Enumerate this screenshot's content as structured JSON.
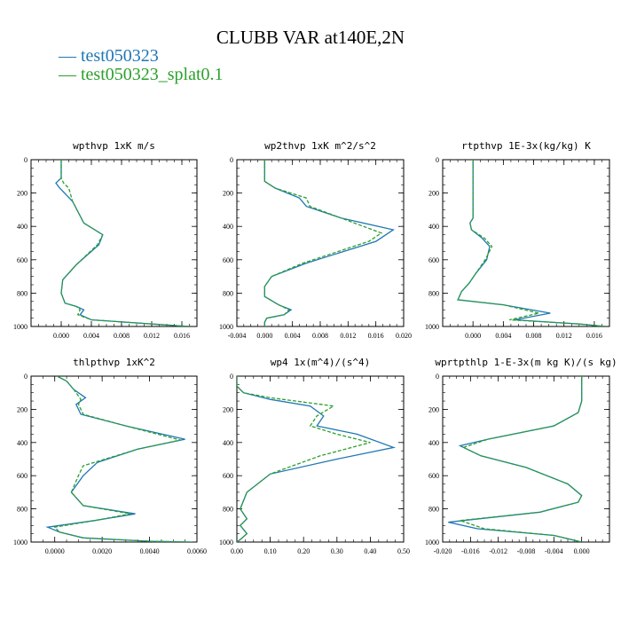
{
  "title": "CLUBB VAR at140E,2N",
  "colors": {
    "series1": "#1f77b4",
    "series2": "#2ca02c"
  },
  "legend": [
    {
      "label": "test050323",
      "color": "#1f77b4"
    },
    {
      "label": "test050323_splat0.1",
      "color": "#2ca02c"
    }
  ],
  "chart_data": [
    {
      "type": "line",
      "title": "wpthvp   1xK m/s",
      "xlim": [
        -0.004,
        0.018
      ],
      "ylim": [
        1000,
        0
      ],
      "x_ticks": [
        "0.000",
        "0.004",
        "0.008",
        "0.012",
        "0.016"
      ],
      "x_tick_values": [
        0.0,
        0.004,
        0.008,
        0.012,
        0.016
      ],
      "y_ticks": [
        "0",
        "200",
        "400",
        "600",
        "800",
        "1000"
      ],
      "y_tick_values": [
        0,
        200,
        400,
        600,
        800,
        1000
      ],
      "series": [
        {
          "name": "test050323",
          "x": [
            0.0,
            0.0,
            -0.0007,
            -0.0002,
            0.0015,
            0.003,
            0.0055,
            0.005,
            0.002,
            0.0002,
            0.0,
            0.0005,
            0.002,
            0.003,
            0.0025,
            0.004,
            0.012,
            0.017
          ],
          "y": [
            0,
            110,
            140,
            170,
            250,
            380,
            450,
            510,
            630,
            720,
            800,
            860,
            880,
            900,
            930,
            960,
            985,
            1000
          ]
        },
        {
          "name": "test050323_splat0.1",
          "x": [
            0.0,
            0.0,
            0.0003,
            0.001,
            0.0015,
            0.003,
            0.0055,
            0.0048,
            0.002,
            0.0002,
            0.0,
            0.0005,
            0.002,
            0.0025,
            0.0022,
            0.004,
            0.012,
            0.017
          ],
          "y": [
            0,
            110,
            140,
            170,
            250,
            380,
            450,
            510,
            630,
            720,
            800,
            860,
            880,
            900,
            930,
            960,
            985,
            1000
          ]
        }
      ]
    },
    {
      "type": "line",
      "title": "wp2thvp   1xK m^2/s^2",
      "xlim": [
        -0.004,
        0.02
      ],
      "ylim": [
        1000,
        0
      ],
      "x_ticks": [
        "-0.004",
        "0.000",
        "0.004",
        "0.008",
        "0.012",
        "0.016",
        "0.020"
      ],
      "x_tick_values": [
        -0.004,
        0.0,
        0.004,
        0.008,
        0.012,
        0.016,
        0.02
      ],
      "y_ticks": [
        "0",
        "200",
        "400",
        "600",
        "800",
        "1000"
      ],
      "y_tick_values": [
        0,
        200,
        400,
        600,
        800,
        1000
      ],
      "series": [
        {
          "name": "test050323",
          "x": [
            0.0,
            0.0,
            0.0015,
            0.005,
            0.006,
            0.011,
            0.0185,
            0.016,
            0.006,
            0.001,
            0.0,
            0.0,
            0.002,
            0.0038,
            0.0028,
            0.0003,
            0.0,
            0.0
          ],
          "y": [
            0,
            130,
            170,
            230,
            280,
            350,
            420,
            490,
            620,
            700,
            760,
            820,
            870,
            900,
            930,
            950,
            975,
            1000
          ]
        },
        {
          "name": "test050323_splat0.1",
          "x": [
            0.0,
            0.0,
            0.0015,
            0.006,
            0.0065,
            0.011,
            0.0168,
            0.015,
            0.0055,
            0.001,
            0.0,
            0.0,
            0.002,
            0.0035,
            0.0028,
            0.0003,
            0.0,
            0.0
          ],
          "y": [
            0,
            130,
            170,
            230,
            280,
            350,
            440,
            490,
            620,
            700,
            760,
            820,
            870,
            900,
            930,
            950,
            975,
            1000
          ]
        }
      ]
    },
    {
      "type": "line",
      "title": "rtpthvp   1E-3x(kg/kg) K",
      "xlim": [
        -0.004,
        0.018
      ],
      "ylim": [
        1000,
        0
      ],
      "x_ticks": [
        "0.000",
        "0.004",
        "0.008",
        "0.012",
        "0.016"
      ],
      "x_tick_values": [
        0.0,
        0.004,
        0.008,
        0.012,
        0.016
      ],
      "y_ticks": [
        "0",
        "200",
        "400",
        "600",
        "800",
        "1000"
      ],
      "y_tick_values": [
        0,
        200,
        400,
        600,
        800,
        1000
      ],
      "series": [
        {
          "name": "test050323",
          "x": [
            0.0,
            0.0,
            0.0,
            0.0,
            -0.0004,
            -0.0002,
            0.0012,
            0.0022,
            0.0018,
            0.0004,
            -0.0005,
            -0.0015,
            -0.002,
            0.004,
            0.0102,
            0.0055,
            0.014,
            0.0175
          ],
          "y": [
            0,
            200,
            300,
            350,
            380,
            420,
            470,
            520,
            600,
            680,
            740,
            790,
            840,
            870,
            920,
            960,
            985,
            1000
          ]
        },
        {
          "name": "test050323_splat0.1",
          "x": [
            0.0,
            0.0,
            0.0,
            0.0,
            -0.0004,
            -0.0002,
            0.0015,
            0.0025,
            0.0016,
            0.0004,
            -0.0005,
            -0.0015,
            -0.002,
            0.004,
            0.0087,
            0.0048,
            0.014,
            0.0175
          ],
          "y": [
            0,
            200,
            300,
            350,
            380,
            420,
            470,
            520,
            600,
            680,
            740,
            790,
            840,
            870,
            920,
            960,
            985,
            1000
          ]
        }
      ]
    },
    {
      "type": "line",
      "title": "thlpthvp   1xK^2",
      "xlim": [
        -0.001,
        0.006
      ],
      "ylim": [
        1000,
        0
      ],
      "x_ticks": [
        "0.0000",
        "0.0020",
        "0.0040",
        "0.0060"
      ],
      "x_tick_values": [
        0.0,
        0.002,
        0.004,
        0.006
      ],
      "y_ticks": [
        "0",
        "200",
        "400",
        "600",
        "800",
        "1000"
      ],
      "y_tick_values": [
        0,
        200,
        400,
        600,
        800,
        1000
      ],
      "series": [
        {
          "name": "test050323",
          "x": [
            0.0001,
            0.0005,
            0.0008,
            0.0013,
            0.0009,
            0.0011,
            0.003,
            0.0055,
            0.0035,
            0.0018,
            0.0012,
            0.0007,
            0.0012,
            0.0034,
            0.0017,
            -0.0003,
            0.0002,
            0.0012,
            0.004,
            0.0058
          ],
          "y": [
            0,
            30,
            80,
            130,
            170,
            230,
            300,
            380,
            440,
            520,
            600,
            700,
            780,
            830,
            870,
            910,
            940,
            975,
            995,
            1000
          ]
        },
        {
          "name": "test050323_splat0.1",
          "x": [
            0.0001,
            0.0005,
            0.0008,
            0.0011,
            0.001,
            0.0012,
            0.003,
            0.0053,
            0.0035,
            0.0012,
            0.001,
            0.0007,
            0.0012,
            0.0032,
            0.0017,
            0.0,
            0.0002,
            0.0012,
            0.004,
            0.0058
          ],
          "y": [
            0,
            30,
            80,
            140,
            170,
            230,
            300,
            385,
            440,
            540,
            600,
            700,
            780,
            830,
            870,
            910,
            940,
            975,
            995,
            1000
          ]
        }
      ]
    },
    {
      "type": "line",
      "title": "wp4   1x(m^4)/(s^4)",
      "xlim": [
        0.0,
        0.5
      ],
      "ylim": [
        1000,
        0
      ],
      "x_ticks": [
        "0.00",
        "0.10",
        "0.20",
        "0.30",
        "0.40",
        "0.50"
      ],
      "x_tick_values": [
        0.0,
        0.1,
        0.2,
        0.3,
        0.4,
        0.5
      ],
      "y_ticks": [
        "0",
        "200",
        "400",
        "600",
        "800",
        "1000"
      ],
      "y_tick_values": [
        0,
        200,
        400,
        600,
        800,
        1000
      ],
      "series": [
        {
          "name": "test050323",
          "x": [
            0.0,
            0.0,
            0.02,
            0.1,
            0.22,
            0.26,
            0.24,
            0.36,
            0.47,
            0.3,
            0.1,
            0.03,
            0.01,
            0.03,
            0.01,
            0.03,
            0.01,
            0.0
          ],
          "y": [
            0,
            60,
            100,
            140,
            180,
            240,
            300,
            350,
            430,
            500,
            590,
            700,
            800,
            860,
            900,
            950,
            985,
            1000
          ]
        },
        {
          "name": "test050323_splat0.1",
          "x": [
            0.0,
            0.0,
            0.02,
            0.1,
            0.29,
            0.24,
            0.22,
            0.3,
            0.4,
            0.25,
            0.1,
            0.03,
            0.01,
            0.03,
            0.01,
            0.03,
            0.01,
            0.0
          ],
          "y": [
            0,
            60,
            100,
            130,
            180,
            240,
            300,
            350,
            400,
            480,
            590,
            700,
            800,
            860,
            900,
            950,
            985,
            1000
          ]
        }
      ]
    },
    {
      "type": "line",
      "title": "wprtpthlp   1-E-3x(m kg K)/(s kg)",
      "xlim": [
        -0.02,
        0.004
      ],
      "ylim": [
        1000,
        0
      ],
      "x_ticks": [
        "-0.020",
        "-0.016",
        "-0.012",
        "-0.008",
        "-0.004",
        "0.000"
      ],
      "x_tick_values": [
        -0.02,
        -0.016,
        -0.012,
        -0.008,
        -0.004,
        0.0
      ],
      "y_ticks": [
        "0",
        "200",
        "400",
        "600",
        "800",
        "1000"
      ],
      "y_tick_values": [
        0,
        200,
        400,
        600,
        800,
        1000
      ],
      "series": [
        {
          "name": "test050323",
          "x": [
            0.0,
            0.0,
            -0.0005,
            -0.004,
            -0.0135,
            -0.0175,
            -0.0145,
            -0.008,
            -0.002,
            0.0,
            -0.0005,
            -0.006,
            -0.0192,
            -0.015,
            -0.004,
            0.0
          ],
          "y": [
            0,
            150,
            220,
            300,
            380,
            420,
            480,
            550,
            650,
            720,
            760,
            820,
            880,
            920,
            960,
            1000
          ]
        },
        {
          "name": "test050323_splat0.1",
          "x": [
            0.0,
            0.0,
            -0.0005,
            -0.004,
            -0.0135,
            -0.017,
            -0.0145,
            -0.008,
            -0.002,
            0.0,
            -0.0005,
            -0.006,
            -0.0175,
            -0.014,
            -0.004,
            0.0
          ],
          "y": [
            0,
            150,
            220,
            300,
            380,
            430,
            480,
            550,
            650,
            720,
            760,
            820,
            870,
            920,
            960,
            1000
          ]
        }
      ]
    }
  ]
}
